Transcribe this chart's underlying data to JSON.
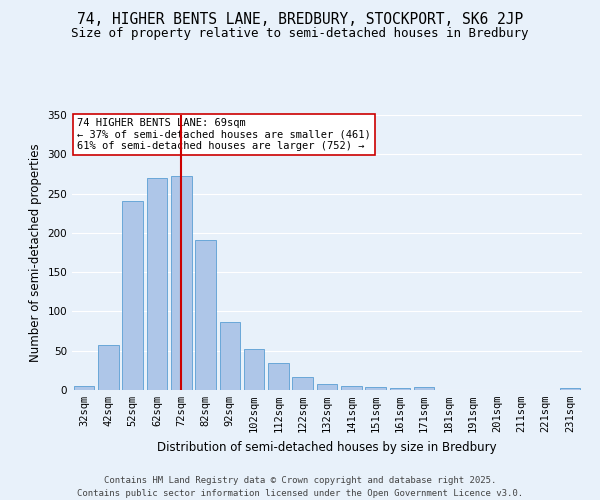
{
  "title_line1": "74, HIGHER BENTS LANE, BREDBURY, STOCKPORT, SK6 2JP",
  "title_line2": "Size of property relative to semi-detached houses in Bredbury",
  "xlabel": "Distribution of semi-detached houses by size in Bredbury",
  "ylabel": "Number of semi-detached properties",
  "categories": [
    "32sqm",
    "42sqm",
    "52sqm",
    "62sqm",
    "72sqm",
    "82sqm",
    "92sqm",
    "102sqm",
    "112sqm",
    "122sqm",
    "132sqm",
    "141sqm",
    "151sqm",
    "161sqm",
    "171sqm",
    "181sqm",
    "191sqm",
    "201sqm",
    "211sqm",
    "221sqm",
    "231sqm"
  ],
  "values": [
    5,
    57,
    240,
    270,
    272,
    191,
    86,
    52,
    34,
    17,
    8,
    5,
    4,
    3,
    4,
    0,
    0,
    0,
    0,
    0,
    2
  ],
  "bar_color": "#AEC6E8",
  "bar_edge_color": "#5A9FD4",
  "background_color": "#E8F1FA",
  "grid_color": "#FFFFFF",
  "vline_x_index": 4,
  "vline_color": "#CC0000",
  "annotation_text": "74 HIGHER BENTS LANE: 69sqm\n← 37% of semi-detached houses are smaller (461)\n61% of semi-detached houses are larger (752) →",
  "annotation_box_color": "#FFFFFF",
  "annotation_box_edge": "#CC0000",
  "footer_line1": "Contains HM Land Registry data © Crown copyright and database right 2025.",
  "footer_line2": "Contains public sector information licensed under the Open Government Licence v3.0.",
  "ylim": [
    0,
    350
  ],
  "yticks": [
    0,
    50,
    100,
    150,
    200,
    250,
    300,
    350
  ],
  "title_fontsize": 10.5,
  "subtitle_fontsize": 9,
  "axis_label_fontsize": 8.5,
  "tick_fontsize": 7.5,
  "footer_fontsize": 6.5,
  "annotation_fontsize": 7.5
}
